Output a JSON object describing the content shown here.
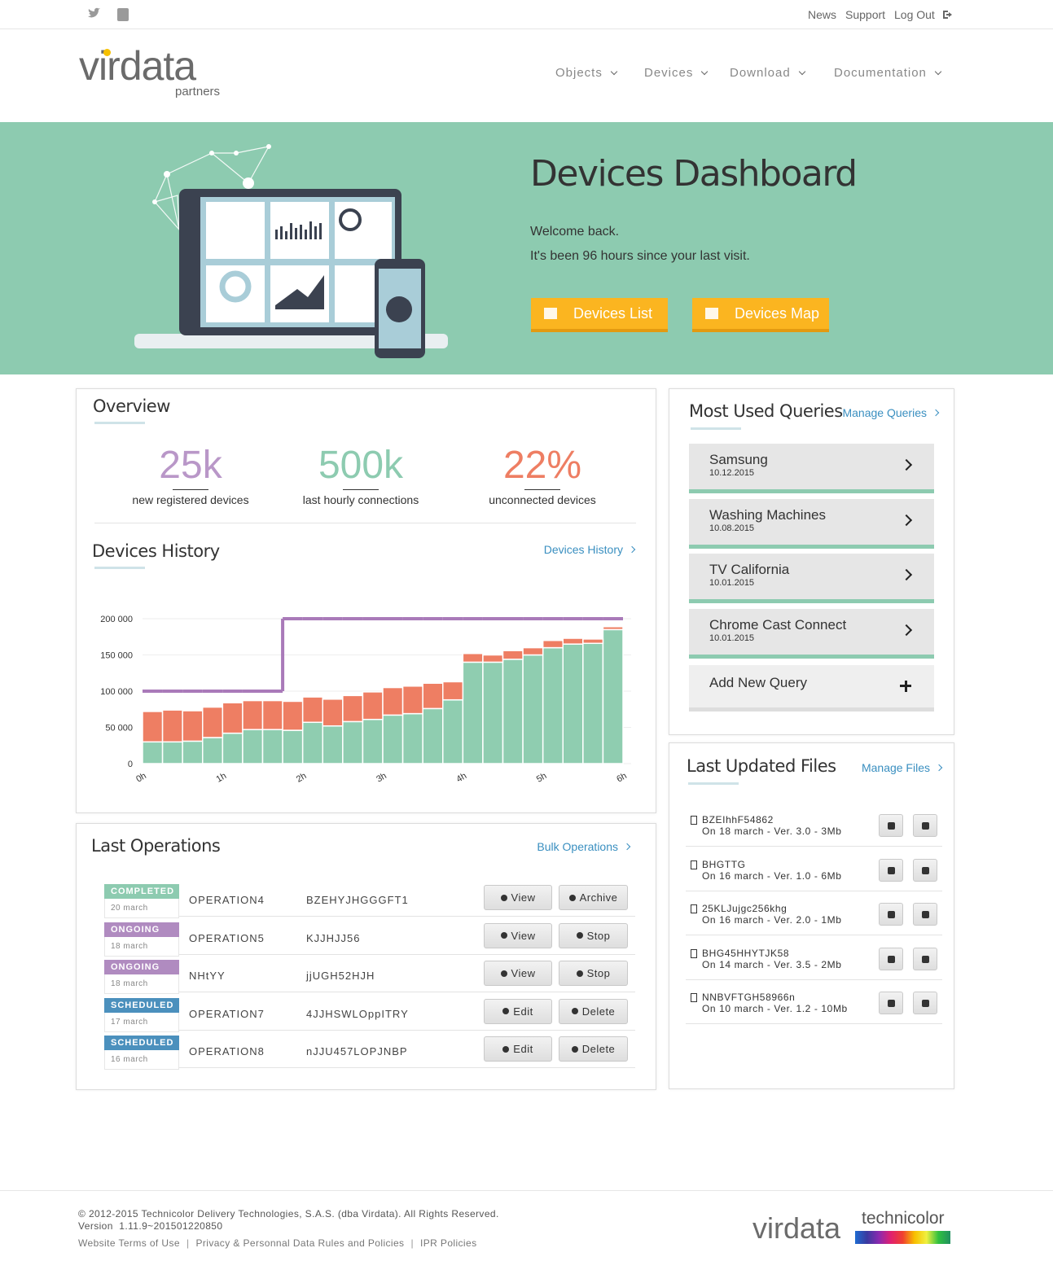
{
  "topbar": {
    "links": [
      "News",
      "Support",
      "Log Out"
    ]
  },
  "header": {
    "logo": "virdata",
    "logo_sub": "partners",
    "nav": [
      "Objects",
      "Devices",
      "Download",
      "Documentation"
    ]
  },
  "hero": {
    "title": "Devices Dashboard",
    "lines": [
      "Welcome back.",
      "It's been 96 hours since your last visit."
    ],
    "buttons": [
      "Devices List",
      "Devices Map"
    ]
  },
  "overview": {
    "title": "Overview",
    "stats": [
      {
        "value": "25k",
        "label": "new registered devices"
      },
      {
        "value": "500k",
        "label": "last hourly connections"
      },
      {
        "value": "22%",
        "label": "unconnected devices"
      }
    ]
  },
  "history": {
    "title": "Devices History",
    "link": "Devices History"
  },
  "chart_data": {
    "type": "bar",
    "stacked": true,
    "x": [
      0.125,
      0.375,
      0.625,
      0.875,
      1.125,
      1.375,
      1.625,
      1.875,
      2.125,
      2.375,
      2.625,
      2.875,
      3.125,
      3.375,
      3.625,
      3.875,
      4.125,
      4.375,
      4.625,
      4.875,
      5.125,
      5.375,
      5.625,
      5.875
    ],
    "xlim": [
      0,
      6
    ],
    "xticks": [
      {
        "value": 0,
        "label": "0h"
      },
      {
        "value": 1,
        "label": "1h"
      },
      {
        "value": 2,
        "label": "2h"
      },
      {
        "value": 3,
        "label": "3h"
      },
      {
        "value": 4,
        "label": "4h"
      },
      {
        "value": 5,
        "label": "5h"
      },
      {
        "value": 6,
        "label": "6h"
      }
    ],
    "ylim": [
      0,
      200000
    ],
    "yticks": [
      0,
      {
        "value": 50000,
        "label": "50 000"
      },
      {
        "value": 100000,
        "label": "100 000"
      },
      {
        "value": 150000,
        "label": "150 000"
      },
      {
        "value": 200000,
        "label": "200 000"
      }
    ],
    "grid": true,
    "series": [
      {
        "color": "#8fcdb0",
        "values": [
          30000,
          30000,
          31000,
          36000,
          42000,
          47000,
          47000,
          46000,
          57000,
          52000,
          58000,
          61000,
          67000,
          69000,
          76000,
          88000,
          140000,
          140000,
          144000,
          150000,
          160000,
          165000,
          166000,
          185000
        ]
      },
      {
        "color": "#ee7e63",
        "values": [
          42000,
          44000,
          42000,
          42000,
          42000,
          40000,
          40000,
          40000,
          35000,
          37000,
          36000,
          38000,
          38000,
          38000,
          35000,
          25000,
          12000,
          10000,
          12000,
          10000,
          10000,
          8000,
          6000,
          4000
        ]
      },
      {
        "type": "line",
        "color": "#a97ab9",
        "values": [
          100000,
          100000,
          100000,
          100000,
          100000,
          100000,
          100000,
          200000,
          200000,
          200000,
          200000,
          200000,
          200000,
          200000,
          200000,
          200000,
          200000,
          200000,
          200000,
          200000,
          200000,
          200000,
          200000,
          200000
        ]
      }
    ]
  },
  "operations": {
    "title": "Last Operations",
    "link": "Bulk Operations",
    "rows": [
      {
        "status": "COMPLETED",
        "status_color": "#8dcbb0",
        "date": "20 march",
        "name": "OPERATION4",
        "code": "BZEHYJHGGGFT1",
        "actions": [
          "View",
          "Archive"
        ]
      },
      {
        "status": "ONGOING",
        "status_color": "#b08bc0",
        "date": "18 march",
        "name": "OPERATION5",
        "code": "KJJHJJ56",
        "actions": [
          "View",
          "Stop"
        ]
      },
      {
        "status": "ONGOING",
        "status_color": "#b08bc0",
        "date": "18 march",
        "name": "NHtYY",
        "code": "jjUGH52HJH",
        "actions": [
          "View",
          "Stop"
        ]
      },
      {
        "status": "SCHEDULED",
        "status_color": "#4b90bd",
        "date": "17 march",
        "name": "OPERATION7",
        "code": "4JJHSWLOppITRY",
        "actions": [
          "Edit",
          "Delete"
        ]
      },
      {
        "status": "SCHEDULED",
        "status_color": "#4b90bd",
        "date": "16 march",
        "name": "OPERATION8",
        "code": "nJJU457LOPJNBP",
        "actions": [
          "Edit",
          "Delete"
        ]
      }
    ]
  },
  "queries": {
    "title": "Most Used Queries",
    "link": "Manage Queries",
    "items": [
      {
        "name": "Samsung",
        "date": "10.12.2015"
      },
      {
        "name": "Washing Machines",
        "date": "10.08.2015"
      },
      {
        "name": "TV California",
        "date": "10.01.2015"
      },
      {
        "name": "Chrome Cast Connect",
        "date": "10.01.2015"
      }
    ],
    "add": "Add New Query"
  },
  "files": {
    "title": "Last Updated Files",
    "link": "Manage Files",
    "items": [
      {
        "name": "BZEIhhF54862",
        "meta": "On 18 march - Ver. 3.0 - 3Mb"
      },
      {
        "name": "BHGTTG",
        "meta": "On 16 march - Ver. 1.0 - 6Mb"
      },
      {
        "name": "25KLJujgc256khg",
        "meta": "On 16 march - Ver. 2.0 - 1Mb"
      },
      {
        "name": "BHG45HHYTJK58",
        "meta": "On 14 march - Ver. 3.5 - 2Mb"
      },
      {
        "name": "NNBVFTGH58966n",
        "meta": "On 10 march - Ver. 1.2 - 10Mb"
      }
    ]
  },
  "footer": {
    "copyright": "© 2012-2015 Technicolor Delivery Technologies, S.A.S. (dba Virdata). All Rights Reserved.",
    "version": "Version  1.11.9~201501220850",
    "links": [
      "Website Terms of Use",
      "Privacy & Personnal Data Rules and Policies",
      "IPR Policies"
    ],
    "logos": [
      "virdata",
      "technicolor"
    ]
  }
}
